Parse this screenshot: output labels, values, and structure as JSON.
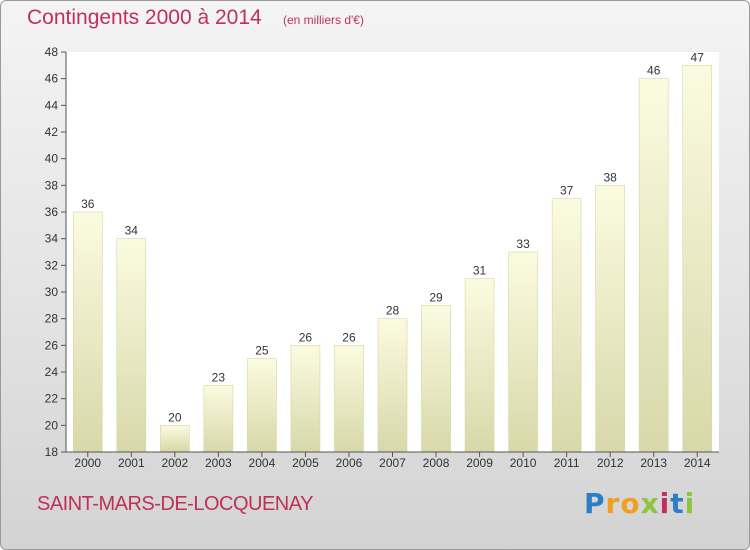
{
  "chart_data": {
    "type": "bar",
    "title": "Contingents 2000 à 2014",
    "subtitle": "(en milliers d'€)",
    "categories": [
      "2000",
      "2001",
      "2002",
      "2003",
      "2004",
      "2005",
      "2006",
      "2007",
      "2008",
      "2009",
      "2010",
      "2011",
      "2012",
      "2013",
      "2014"
    ],
    "values": [
      36,
      34,
      20,
      23,
      25,
      26,
      26,
      28,
      29,
      31,
      33,
      37,
      38,
      46,
      47
    ],
    "ylim": [
      18,
      48
    ],
    "yticks": [
      18,
      20,
      22,
      24,
      26,
      28,
      30,
      32,
      34,
      36,
      38,
      40,
      42,
      44,
      46,
      48
    ],
    "grid": false,
    "bar_color": "#f3f3c4",
    "bar_edge_color": "#d6d6a4"
  },
  "footer": {
    "commune": "SAINT-MARS-DE-LOCQUENAY",
    "brand_letters": [
      "P",
      "r",
      "o",
      "x",
      "i",
      "t",
      "i"
    ],
    "brand_colors": [
      "#2b7fc9",
      "#f0a020",
      "#f0a020",
      "#8cc63f",
      "#c0305a",
      "#2b7fc9",
      "#8cc63f"
    ]
  },
  "colors": {
    "title": "#c0305a",
    "axis": "#333333"
  }
}
